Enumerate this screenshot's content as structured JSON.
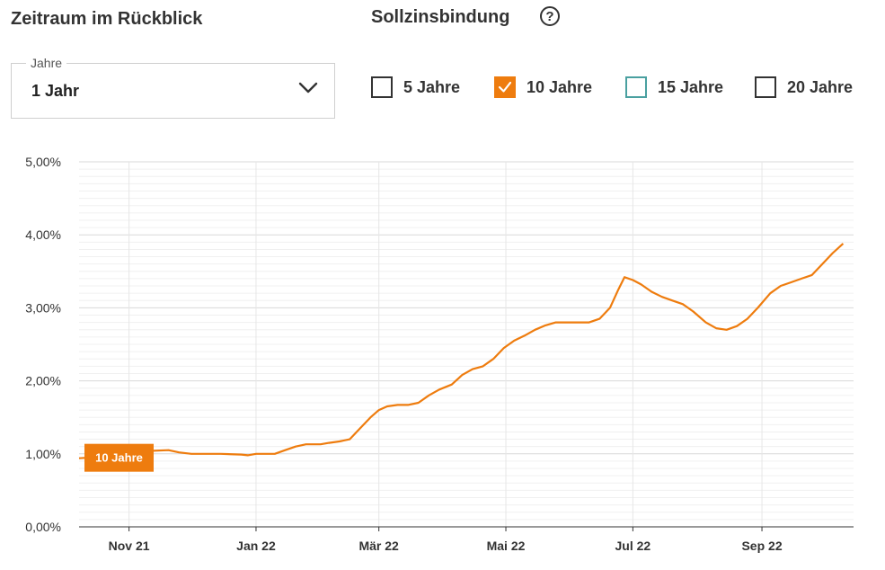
{
  "period": {
    "title": "Zeitraum im Rückblick",
    "select_legend": "Jahre",
    "select_value": "1 Jahr"
  },
  "fixation": {
    "title": "Sollzinsbindung",
    "help_icon": "question-circle-icon",
    "options": [
      {
        "label": "5 Jahre",
        "checked": false,
        "border": "#333333"
      },
      {
        "label": "10 Jahre",
        "checked": true,
        "border": "#ee7c0e"
      },
      {
        "label": "15 Jahre",
        "checked": false,
        "border": "#4aa0a0"
      },
      {
        "label": "20 Jahre",
        "checked": false,
        "border": "#333333"
      }
    ]
  },
  "colors": {
    "accent": "#ee7c0e",
    "grid": "#e6e6e6",
    "axis": "#333333"
  },
  "chart_data": {
    "type": "line",
    "ylim": [
      0,
      5
    ],
    "y_ticks": [
      "0,00%",
      "1,00%",
      "2,00%",
      "3,00%",
      "4,00%",
      "5,00%"
    ],
    "x_ticks": [
      "Nov 21",
      "Jan 22",
      "Mär 22",
      "Mai 22",
      "Jul 22",
      "Sep 22"
    ],
    "x_tick_dates": [
      "2021-11-01",
      "2022-01-01",
      "2022-03-01",
      "2022-05-01",
      "2022-07-01",
      "2022-09-01"
    ],
    "xlim": [
      "2021-10-08",
      "2022-10-15"
    ],
    "grid": true,
    "series": [
      {
        "name": "10 Jahre",
        "color": "#ee7c0e",
        "points": [
          [
            "2021-10-08",
            0.94
          ],
          [
            "2021-10-20",
            0.96
          ],
          [
            "2021-11-01",
            1.01
          ],
          [
            "2021-11-10",
            1.04
          ],
          [
            "2021-11-20",
            1.05
          ],
          [
            "2021-11-25",
            1.02
          ],
          [
            "2021-12-01",
            1.0
          ],
          [
            "2021-12-15",
            1.0
          ],
          [
            "2021-12-25",
            0.99
          ],
          [
            "2021-12-28",
            0.98
          ],
          [
            "2022-01-01",
            1.0
          ],
          [
            "2022-01-10",
            1.0
          ],
          [
            "2022-01-15",
            1.05
          ],
          [
            "2022-01-20",
            1.1
          ],
          [
            "2022-01-25",
            1.13
          ],
          [
            "2022-02-01",
            1.13
          ],
          [
            "2022-02-05",
            1.15
          ],
          [
            "2022-02-10",
            1.17
          ],
          [
            "2022-02-15",
            1.2
          ],
          [
            "2022-02-20",
            1.35
          ],
          [
            "2022-02-25",
            1.5
          ],
          [
            "2022-03-01",
            1.6
          ],
          [
            "2022-03-05",
            1.65
          ],
          [
            "2022-03-10",
            1.67
          ],
          [
            "2022-03-15",
            1.67
          ],
          [
            "2022-03-20",
            1.7
          ],
          [
            "2022-03-25",
            1.8
          ],
          [
            "2022-03-30",
            1.88
          ],
          [
            "2022-04-05",
            1.95
          ],
          [
            "2022-04-10",
            2.08
          ],
          [
            "2022-04-15",
            2.16
          ],
          [
            "2022-04-20",
            2.2
          ],
          [
            "2022-04-25",
            2.3
          ],
          [
            "2022-04-30",
            2.45
          ],
          [
            "2022-05-05",
            2.55
          ],
          [
            "2022-05-10",
            2.62
          ],
          [
            "2022-05-15",
            2.7
          ],
          [
            "2022-05-20",
            2.76
          ],
          [
            "2022-05-25",
            2.8
          ],
          [
            "2022-06-01",
            2.8
          ],
          [
            "2022-06-10",
            2.8
          ],
          [
            "2022-06-15",
            2.85
          ],
          [
            "2022-06-20",
            3.0
          ],
          [
            "2022-06-24",
            3.25
          ],
          [
            "2022-06-27",
            3.42
          ],
          [
            "2022-07-01",
            3.38
          ],
          [
            "2022-07-05",
            3.32
          ],
          [
            "2022-07-10",
            3.22
          ],
          [
            "2022-07-15",
            3.15
          ],
          [
            "2022-07-20",
            3.1
          ],
          [
            "2022-07-25",
            3.05
          ],
          [
            "2022-07-30",
            2.95
          ],
          [
            "2022-08-05",
            2.8
          ],
          [
            "2022-08-10",
            2.72
          ],
          [
            "2022-08-15",
            2.7
          ],
          [
            "2022-08-20",
            2.75
          ],
          [
            "2022-08-25",
            2.85
          ],
          [
            "2022-08-30",
            3.0
          ],
          [
            "2022-09-05",
            3.2
          ],
          [
            "2022-09-10",
            3.3
          ],
          [
            "2022-09-15",
            3.35
          ],
          [
            "2022-09-20",
            3.4
          ],
          [
            "2022-09-25",
            3.45
          ],
          [
            "2022-09-30",
            3.6
          ],
          [
            "2022-10-05",
            3.75
          ],
          [
            "2022-10-10",
            3.88
          ]
        ]
      }
    ]
  }
}
